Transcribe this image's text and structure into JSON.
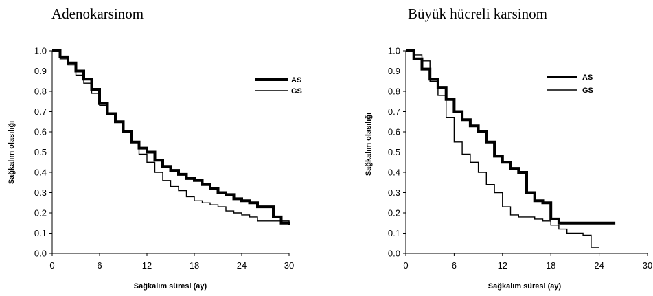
{
  "chart_data": [
    {
      "type": "line",
      "title": "Adenokarsinom",
      "xlabel": "Sağkalım süresi (ay)",
      "ylabel": "Sağkalım olasılığı",
      "xlim": [
        0,
        30
      ],
      "ylim": [
        0,
        1.0
      ],
      "xticks": [
        "0",
        "6",
        "12",
        "18",
        "24",
        "30"
      ],
      "yticks": [
        "0.0",
        "0.1",
        "0.2",
        "0.3",
        "0.4",
        "0.5",
        "0.6",
        "0.7",
        "0.8",
        "0.9",
        "1.0"
      ],
      "grid": false,
      "legend_position": "top-right",
      "series": [
        {
          "name": "AS",
          "line": "thick",
          "x": [
            0,
            1,
            2,
            3,
            4,
            5,
            6,
            7,
            8,
            9,
            10,
            11,
            12,
            13,
            14,
            15,
            16,
            17,
            18,
            19,
            20,
            21,
            22,
            23,
            24,
            25,
            26,
            27,
            28,
            29,
            30
          ],
          "y": [
            1.0,
            0.97,
            0.94,
            0.9,
            0.86,
            0.81,
            0.74,
            0.69,
            0.65,
            0.6,
            0.55,
            0.52,
            0.5,
            0.46,
            0.43,
            0.41,
            0.39,
            0.37,
            0.36,
            0.34,
            0.32,
            0.3,
            0.29,
            0.27,
            0.26,
            0.25,
            0.23,
            0.23,
            0.18,
            0.15,
            0.14
          ]
        },
        {
          "name": "GS",
          "line": "thin",
          "x": [
            0,
            1,
            2,
            3,
            4,
            5,
            6,
            7,
            8,
            9,
            10,
            11,
            12,
            13,
            14,
            15,
            16,
            17,
            18,
            19,
            20,
            21,
            22,
            23,
            24,
            25,
            26,
            27,
            28,
            29,
            30
          ],
          "y": [
            1.0,
            0.96,
            0.93,
            0.88,
            0.84,
            0.79,
            0.73,
            0.69,
            0.65,
            0.6,
            0.55,
            0.49,
            0.45,
            0.4,
            0.36,
            0.33,
            0.31,
            0.28,
            0.26,
            0.25,
            0.24,
            0.23,
            0.21,
            0.2,
            0.19,
            0.18,
            0.16,
            0.16,
            0.16,
            0.16,
            0.14
          ]
        }
      ]
    },
    {
      "type": "line",
      "title": "Büyük hücreli karsinom",
      "xlabel": "Sağkalım süresi (ay)",
      "ylabel": "Sağkalım olasılığı",
      "xlim": [
        0,
        30
      ],
      "ylim": [
        0,
        1.0
      ],
      "xticks": [
        "0",
        "6",
        "12",
        "18",
        "24",
        "30"
      ],
      "yticks": [
        "0.0",
        "0.1",
        "0.2",
        "0.3",
        "0.4",
        "0.5",
        "0.6",
        "0.7",
        "0.8",
        "0.9",
        "1.0"
      ],
      "grid": false,
      "legend_position": "top-right",
      "series": [
        {
          "name": "AS",
          "line": "thick",
          "x": [
            0,
            1,
            2,
            3,
            4,
            5,
            6,
            7,
            8,
            9,
            10,
            11,
            12,
            13,
            14,
            15,
            16,
            17,
            18,
            19,
            20,
            21,
            22,
            23,
            24,
            25,
            26
          ],
          "y": [
            1.0,
            0.96,
            0.91,
            0.86,
            0.82,
            0.76,
            0.7,
            0.66,
            0.63,
            0.6,
            0.55,
            0.48,
            0.45,
            0.42,
            0.4,
            0.3,
            0.26,
            0.25,
            0.17,
            0.15,
            0.15,
            0.15,
            0.15,
            0.15,
            0.15,
            0.15,
            0.15
          ]
        },
        {
          "name": "GS",
          "line": "thin",
          "x": [
            0,
            1,
            2,
            3,
            4,
            5,
            6,
            7,
            8,
            9,
            10,
            11,
            12,
            13,
            14,
            15,
            16,
            17,
            18,
            19,
            20,
            21,
            22,
            23,
            24
          ],
          "y": [
            1.0,
            0.98,
            0.95,
            0.85,
            0.78,
            0.67,
            0.55,
            0.49,
            0.45,
            0.4,
            0.34,
            0.3,
            0.23,
            0.19,
            0.18,
            0.18,
            0.17,
            0.16,
            0.14,
            0.12,
            0.1,
            0.1,
            0.09,
            0.03,
            0.03
          ]
        }
      ]
    }
  ]
}
